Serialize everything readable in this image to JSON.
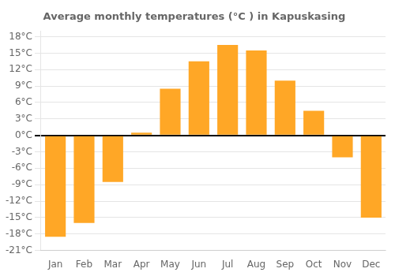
{
  "chart_data": {
    "type": "bar",
    "title": "Average monthly temperatures (°C ) in Kapuskasing",
    "categories": [
      "Jan",
      "Feb",
      "Mar",
      "Apr",
      "May",
      "Jun",
      "Jul",
      "Aug",
      "Sep",
      "Oct",
      "Nov",
      "Dec"
    ],
    "values": [
      -18.5,
      -16.0,
      -8.5,
      0.5,
      8.5,
      13.5,
      16.5,
      15.5,
      10.0,
      4.5,
      -4.0,
      -15.0
    ],
    "color": "#FFA726",
    "ylim": [
      -21,
      19
    ],
    "yticks": [
      {
        "value": -21,
        "label": "-21°C"
      },
      {
        "value": -18,
        "label": "-18°C"
      },
      {
        "value": -15,
        "label": "-15°C"
      },
      {
        "value": -12,
        "label": "-12°C"
      },
      {
        "value": -9,
        "label": "-9°C"
      },
      {
        "value": -6,
        "label": "-6°C"
      },
      {
        "value": -3,
        "label": "-3°C"
      },
      {
        "value": 0,
        "label": "0°C"
      },
      {
        "value": 3,
        "label": "3°C"
      },
      {
        "value": 6,
        "label": "6°C"
      },
      {
        "value": 9,
        "label": "9°C"
      },
      {
        "value": 12,
        "label": "12°C"
      },
      {
        "value": 15,
        "label": "15°C"
      },
      {
        "value": 18,
        "label": "18°C"
      }
    ],
    "grid": true
  }
}
